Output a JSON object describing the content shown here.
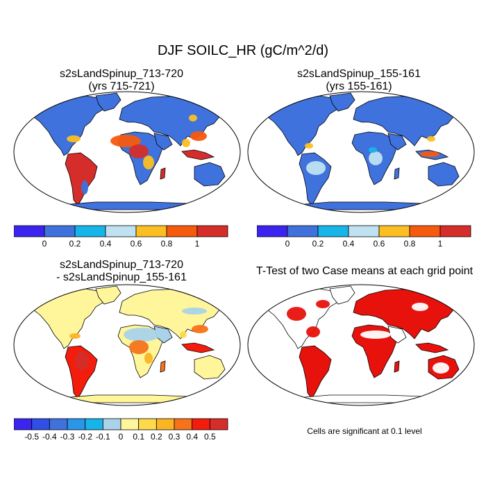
{
  "title": "DJF SOILC_HR (gC/m^2/d)",
  "panels": [
    {
      "id": "case1",
      "title_line1": "s2sLandSpinup_713-720",
      "title_line2": "(yrs 715-721)"
    },
    {
      "id": "case2",
      "title_line1": "s2sLandSpinup_155-161",
      "title_line2": "(yrs 155-161)"
    },
    {
      "id": "diff",
      "title_line1": "s2sLandSpinup_713-720",
      "title_line2": "- s2sLandSpinup_155-161"
    },
    {
      "id": "ttest",
      "title_line1": "T-Test of two Case means at each grid point",
      "title_line2": ""
    }
  ],
  "colorbar_main": {
    "labels": [
      "0",
      "0.2",
      "0.4",
      "0.6",
      "0.8",
      "1"
    ],
    "colors": [
      "#3b24f0",
      "#3f72dd",
      "#17b4ea",
      "#bfe1f0",
      "#fbbf23",
      "#f65a0e",
      "#d42d2a"
    ]
  },
  "colorbar_diff": {
    "labels": [
      "-0.5",
      "-0.4",
      "-0.3",
      "-0.2",
      "-0.1",
      "0",
      "0.1",
      "0.2",
      "0.3",
      "0.4",
      "0.5"
    ],
    "colors": [
      "#3b24f0",
      "#2f4fe6",
      "#3f72dd",
      "#2996ea",
      "#17b4ea",
      "#a9d3ea",
      "#fff59a",
      "#fdd94b",
      "#fbb424",
      "#f6731a",
      "#f41c0c",
      "#d42d2a"
    ]
  },
  "colors": {
    "land_low": "#3f72dd",
    "ocean": "#ffffff",
    "tropics_high": "#d42d2a",
    "mid": "#fbbf23",
    "light_blue": "#bfe1f0",
    "diff_base": "#fff59a",
    "significant": "#e8120c"
  },
  "ttest_note": "Cells are significant at 0.1 level"
}
